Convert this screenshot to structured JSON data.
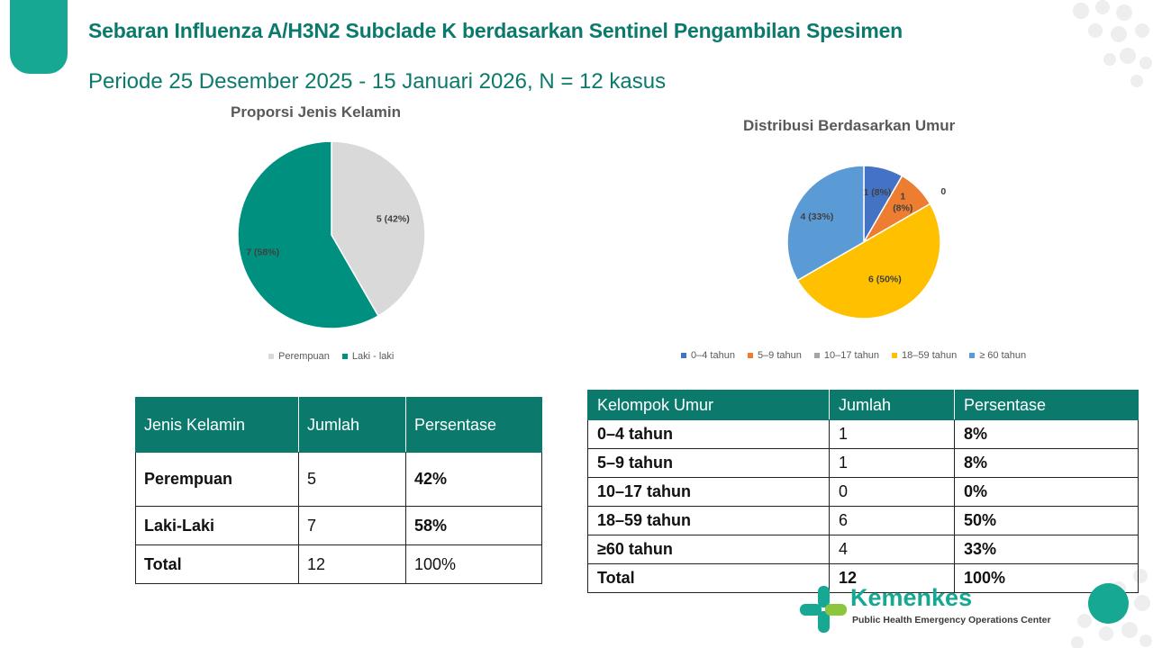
{
  "header": {
    "title": "Sebaran Influenza A/H3N2 Subclade K berdasarkan Sentinel Pengambilan Spesimen",
    "subtitle": "Periode 25 Desember 2025 - 15 Januari 2026, N = 12  kasus"
  },
  "chart_data": [
    {
      "type": "pie",
      "title": "Proporsi Jenis Kelamin",
      "categories": [
        "Perempuan",
        "Laki - laki"
      ],
      "values": [
        5,
        7
      ],
      "data_labels": [
        "5 (42%)",
        "7 (58%)"
      ],
      "colors": [
        "#d9d9d9",
        "#009080"
      ],
      "legend_position": "bottom"
    },
    {
      "type": "pie",
      "title": "Distribusi Berdasarkan Umur",
      "categories": [
        "0–4 tahun",
        "5–9 tahun",
        "10–17 tahun",
        "18–59 tahun",
        "≥ 60 tahun"
      ],
      "values": [
        1,
        1,
        0,
        6,
        4
      ],
      "data_labels": [
        "1 (8%)",
        "1\n(8%)",
        "0",
        "6 (50%)",
        "4 (33%)"
      ],
      "colors": [
        "#4472c4",
        "#ed7d31",
        "#a5a5a5",
        "#ffc000",
        "#5b9bd5"
      ],
      "legend_position": "bottom"
    }
  ],
  "table_gender": {
    "headers": [
      "Jenis Kelamin",
      "Jumlah",
      "Persentase"
    ],
    "rows": [
      [
        "Perempuan",
        "5",
        "42%"
      ],
      [
        "Laki-Laki",
        "7",
        "58%"
      ],
      [
        "Total",
        "12",
        "100%"
      ]
    ]
  },
  "table_age": {
    "headers": [
      "Kelompok Umur",
      "Jumlah",
      "Persentase"
    ],
    "rows": [
      [
        "0–4 tahun",
        "1",
        "8%"
      ],
      [
        "5–9 tahun",
        "1",
        "8%"
      ],
      [
        "10–17 tahun",
        "0",
        "0%"
      ],
      [
        "18–59 tahun",
        "6",
        "50%"
      ],
      [
        "≥60 tahun",
        "4",
        "33%"
      ],
      [
        "Total",
        "12",
        "100%"
      ]
    ]
  },
  "branding": {
    "name": "Kemenkes",
    "tagline": "Public Health Emergency Operations Center",
    "accent_color": "#17a894"
  }
}
